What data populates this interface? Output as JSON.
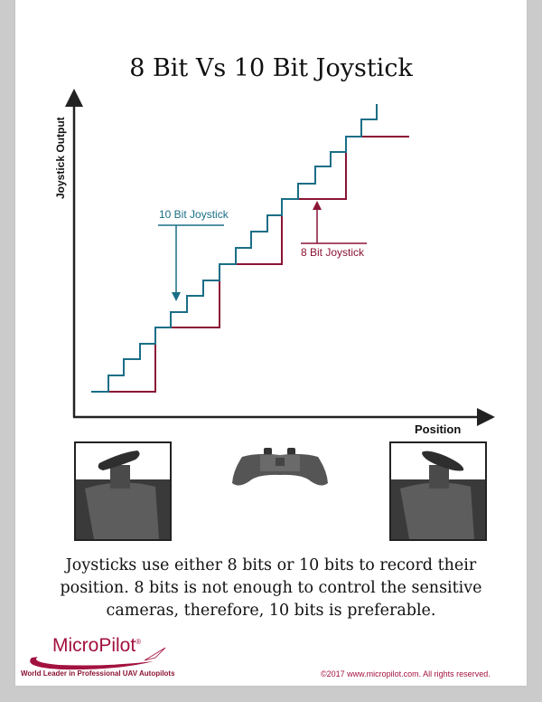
{
  "title": "8 Bit Vs 10 Bit Joystick",
  "diagram": {
    "y_axis_label": "Joystick Output",
    "x_axis_label": "Position",
    "series": [
      {
        "label": "10 Bit Joystick",
        "color": "#1a6e86"
      },
      {
        "label": "8 Bit Joystick",
        "color": "#8b1435"
      }
    ]
  },
  "images": [
    "joystick-closeup-left",
    "gamepad-controller",
    "joystick-closeup-right"
  ],
  "body_text": "Joysticks use either 8 bits or 10 bits to record their position. 8 bits is not enough to control the sensitive cameras, therefore, 10 bits is preferable.",
  "footer": {
    "brand": "MicroPilot",
    "registered": "®",
    "tagline": "World Leader in Professional UAV Autopilots",
    "copyright": "©2017 www.micropilot.com. All rights reserved."
  }
}
